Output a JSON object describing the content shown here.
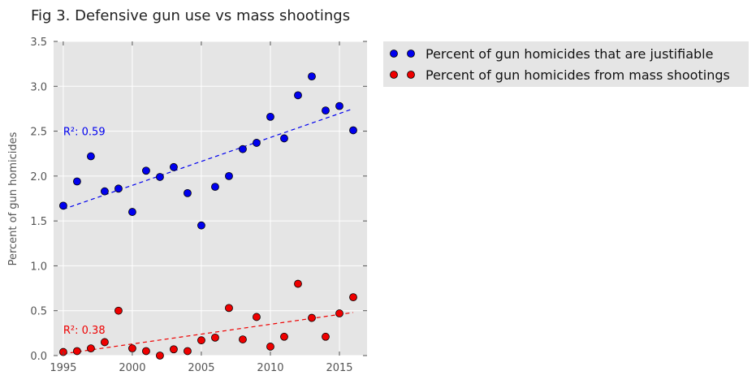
{
  "chart_data": {
    "type": "scatter",
    "title": "Fig 3. Defensive gun use vs mass shootings",
    "xlabel": "",
    "ylabel": "Percent of gun homicides",
    "xlim": [
      1994.3,
      2017
    ],
    "ylim": [
      0,
      3.5
    ],
    "xticks": [
      1995,
      2000,
      2005,
      2010,
      2015
    ],
    "yticks": [
      0.0,
      0.5,
      1.0,
      1.5,
      2.0,
      2.5,
      3.0,
      3.5
    ],
    "x_tick_labels": [
      "1995",
      "2000",
      "2005",
      "2010",
      "2015"
    ],
    "y_tick_labels": [
      "0.0",
      "0.5",
      "1.0",
      "1.5",
      "2.0",
      "2.5",
      "3.0",
      "3.5"
    ],
    "grid": true,
    "legend_position": "outside-right-top",
    "x": [
      1995,
      1996,
      1997,
      1998,
      1999,
      2000,
      2001,
      2002,
      2003,
      2004,
      2005,
      2006,
      2007,
      2008,
      2009,
      2010,
      2011,
      2012,
      2013,
      2014,
      2015,
      2016
    ],
    "series": [
      {
        "name": "Percent of gun homicides that are justifiable",
        "color": "#0000ee",
        "values": [
          1.67,
          1.94,
          2.22,
          1.83,
          1.86,
          1.6,
          2.06,
          1.99,
          2.1,
          1.81,
          1.45,
          1.88,
          2.0,
          2.3,
          2.37,
          2.66,
          2.42,
          2.9,
          3.11,
          2.73,
          2.78,
          2.51
        ],
        "trend": {
          "start": [
            1995,
            1.63
          ],
          "end": [
            2016,
            2.75
          ]
        },
        "annotation": {
          "text": "R²: 0.59",
          "x": 1995,
          "y": 2.5
        }
      },
      {
        "name": "Percent of gun homicides from mass shootings",
        "color": "#ee0000",
        "values": [
          0.04,
          0.05,
          0.08,
          0.15,
          0.5,
          0.08,
          0.05,
          0.0,
          0.07,
          0.05,
          0.17,
          0.2,
          0.53,
          0.18,
          0.43,
          0.1,
          0.21,
          0.8,
          0.42,
          0.21,
          0.47,
          0.65
        ],
        "trend": {
          "start": [
            1995,
            0.02
          ],
          "end": [
            2016,
            0.48
          ]
        },
        "annotation": {
          "text": "R²: 0.38",
          "x": 1995,
          "y": 0.29
        }
      }
    ]
  }
}
